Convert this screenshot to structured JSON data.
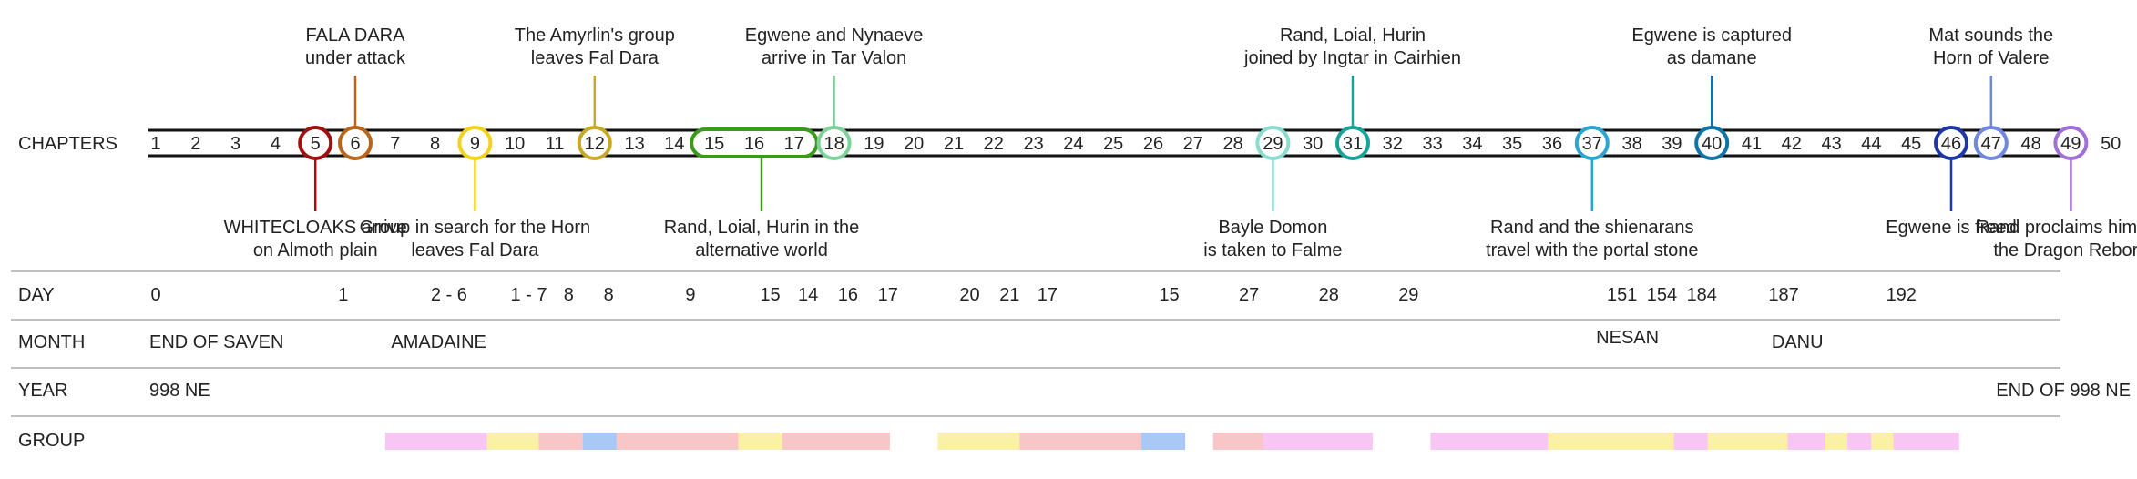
{
  "chart_data": {
    "type": "timeline",
    "title": "",
    "rows": [
      {
        "key": "chapters",
        "label": "CHAPTERS"
      },
      {
        "key": "day",
        "label": "DAY"
      },
      {
        "key": "month",
        "label": "MONTH"
      },
      {
        "key": "year",
        "label": "YEAR"
      },
      {
        "key": "group",
        "label": "GROUP"
      }
    ],
    "chapters": [
      "1",
      "2",
      "3",
      "4",
      "5",
      "6",
      "7",
      "8",
      "9",
      "10",
      "11",
      "12",
      "13",
      "14",
      "15",
      "16",
      "17",
      "18",
      "19",
      "20",
      "21",
      "22",
      "23",
      "24",
      "25",
      "26",
      "27",
      "28",
      "29",
      "30",
      "31",
      "32",
      "33",
      "34",
      "35",
      "36",
      "37",
      "38",
      "39",
      "40",
      "41",
      "42",
      "43",
      "44",
      "45",
      "46",
      "47",
      "48",
      "49",
      "50"
    ],
    "events": [
      {
        "chapter": 5,
        "side": "below",
        "color": "#a01010",
        "lines": [
          "WHITECLOAKS arrive",
          "on Almoth plain"
        ]
      },
      {
        "chapter": 6,
        "side": "above",
        "color": "#b8651b",
        "lines": [
          "FALA DARA",
          "under attack"
        ]
      },
      {
        "chapter": 9,
        "side": "below",
        "color": "#f2d21c",
        "lines": [
          "Group in search for the Horn",
          "leaves Fal Dara"
        ]
      },
      {
        "chapter": 12,
        "side": "above",
        "color": "#c8a826",
        "lines": [
          "The Amyrlin's group",
          "leaves Fal Dara"
        ]
      },
      {
        "chapter": 18,
        "side": "above",
        "color": "#7fd19a",
        "lines": [
          "Egwene and Nynaeve",
          "arrive in Tar Valon"
        ]
      },
      {
        "chapter": 29,
        "side": "below",
        "color": "#8adbd0",
        "lines": [
          "Bayle Domon",
          "is taken to Falme"
        ]
      },
      {
        "chapter": 31,
        "side": "above",
        "color": "#17a39a",
        "lines": [
          "Rand, Loial, Hurin",
          "joined by Ingtar in Cairhien"
        ]
      },
      {
        "chapter": 37,
        "side": "below",
        "color": "#2aa6d4",
        "lines": [
          "Rand and the shienarans",
          "travel with the portal stone"
        ]
      },
      {
        "chapter": 40,
        "side": "above",
        "color": "#0f74a8",
        "lines": [
          "Egwene is captured",
          "as damane"
        ]
      },
      {
        "chapter": 46,
        "side": "below",
        "color": "#1e37a8",
        "lines": [
          "Egwene is freed"
        ]
      },
      {
        "chapter": 47,
        "side": "above",
        "color": "#6f87e0",
        "lines": [
          "Mat sounds the",
          "Horn of Valere"
        ]
      },
      {
        "chapter": 49,
        "side": "below",
        "color": "#a06fd8",
        "lines": [
          "Rand proclaims himself",
          "the Dragon Reborn"
        ]
      }
    ],
    "range_event": {
      "from": 15,
      "to": 17,
      "side": "below",
      "color": "#3a9a1a",
      "lines": [
        "Rand, Loial, Hurin in the",
        "alternative world"
      ]
    },
    "days": [
      {
        "chapter": 1,
        "text": "0"
      },
      {
        "chapter": 5.7,
        "text": "1"
      },
      {
        "chapter": 8.35,
        "text": "2 - 6"
      },
      {
        "chapter": 10.35,
        "text": "1 - 7"
      },
      {
        "chapter": 11.35,
        "text": "8"
      },
      {
        "chapter": 12.35,
        "text": "8"
      },
      {
        "chapter": 14.4,
        "text": "9"
      },
      {
        "chapter": 16.4,
        "text": "15"
      },
      {
        "chapter": 17.35,
        "text": "14"
      },
      {
        "chapter": 18.35,
        "text": "16"
      },
      {
        "chapter": 19.35,
        "text": "17"
      },
      {
        "chapter": 21.4,
        "text": "20"
      },
      {
        "chapter": 22.4,
        "text": "21"
      },
      {
        "chapter": 23.35,
        "text": "17"
      },
      {
        "chapter": 26.4,
        "text": "15"
      },
      {
        "chapter": 28.4,
        "text": "27"
      },
      {
        "chapter": 30.4,
        "text": "28"
      },
      {
        "chapter": 32.4,
        "text": "29"
      },
      {
        "chapter": 37.75,
        "text": "151"
      },
      {
        "chapter": 38.75,
        "text": "154"
      },
      {
        "chapter": 39.75,
        "text": "184"
      },
      {
        "chapter": 41.8,
        "text": "187"
      },
      {
        "chapter": 44.75,
        "text": "192"
      }
    ],
    "months": [
      {
        "chapter": 1,
        "anchor": "start",
        "text": "END OF SAVEN"
      },
      {
        "chapter": 6.9,
        "anchor": "start",
        "text": "AMADAINE"
      },
      {
        "chapter": 37.1,
        "anchor": "start",
        "text": "NESAN",
        "raised": true
      },
      {
        "chapter": 41.5,
        "anchor": "start",
        "text": "DANU"
      }
    ],
    "years": [
      {
        "chapter": 1,
        "anchor": "start",
        "text": "998 NE"
      },
      {
        "chapter": 50.5,
        "anchor": "end",
        "text": "END OF 998 NE"
      }
    ],
    "group_segments": [
      {
        "from": 6.75,
        "to": 9.3,
        "color": "#f7c6f2"
      },
      {
        "from": 9.3,
        "to": 10.6,
        "color": "#fbf1a6"
      },
      {
        "from": 10.6,
        "to": 11.7,
        "color": "#f8c6c6"
      },
      {
        "from": 11.7,
        "to": 12.55,
        "color": "#a9c8f5"
      },
      {
        "from": 12.55,
        "to": 15.6,
        "color": "#f8c6c6"
      },
      {
        "from": 15.6,
        "to": 16.7,
        "color": "#fbf1a6"
      },
      {
        "from": 16.7,
        "to": 19.4,
        "color": "#f8c6c6"
      },
      {
        "from": 20.6,
        "to": 22.65,
        "color": "#fbf1a6"
      },
      {
        "from": 22.65,
        "to": 25.7,
        "color": "#f8c6c6"
      },
      {
        "from": 25.7,
        "to": 26.8,
        "color": "#a9c8f5"
      },
      {
        "from": 27.5,
        "to": 28.75,
        "color": "#f8c6c6"
      },
      {
        "from": 28.75,
        "to": 31.5,
        "color": "#f7c6f2"
      },
      {
        "from": 32.95,
        "to": 35.9,
        "color": "#f7c6f2"
      },
      {
        "from": 35.9,
        "to": 39.05,
        "color": "#fbf1a6"
      },
      {
        "from": 39.05,
        "to": 39.9,
        "color": "#f7c6f2"
      },
      {
        "from": 39.9,
        "to": 41.9,
        "color": "#fbf1a6"
      },
      {
        "from": 41.9,
        "to": 42.85,
        "color": "#f7c6f2"
      },
      {
        "from": 42.85,
        "to": 43.4,
        "color": "#fbf1a6"
      },
      {
        "from": 43.4,
        "to": 44.0,
        "color": "#f7c6f2"
      },
      {
        "from": 44.0,
        "to": 44.55,
        "color": "#fbf1a6"
      },
      {
        "from": 44.55,
        "to": 46.2,
        "color": "#f7c6f2"
      }
    ]
  }
}
